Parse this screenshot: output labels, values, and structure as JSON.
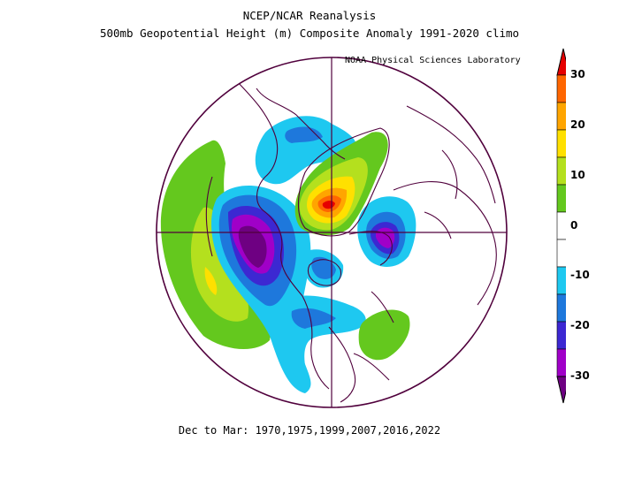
{
  "title_line1": "NCEP/NCAR Reanalysis",
  "title_line2": "500mb Geopotential Height (m) Composite Anomaly 1991-2020 climo",
  "lab_label": "NOAA Physical Sciences Laboratory",
  "footer": "Dec to Mar: 1970,1975,1999,2007,2016,2022",
  "colorbar": {
    "ticks": [
      "30",
      "20",
      "10",
      "0",
      "-10",
      "-20",
      "-30"
    ],
    "colors": [
      "#e60000",
      "#ff6600",
      "#ffa500",
      "#ffe000",
      "#b4e01e",
      "#64c81e",
      "#ffffff",
      "#ffffff",
      "#1ec8f0",
      "#1e78dc",
      "#3c28d2",
      "#a000c8",
      "#6e0082"
    ]
  },
  "map": {
    "projection": "north polar stereographic",
    "boundary_color": "#50003c"
  }
}
